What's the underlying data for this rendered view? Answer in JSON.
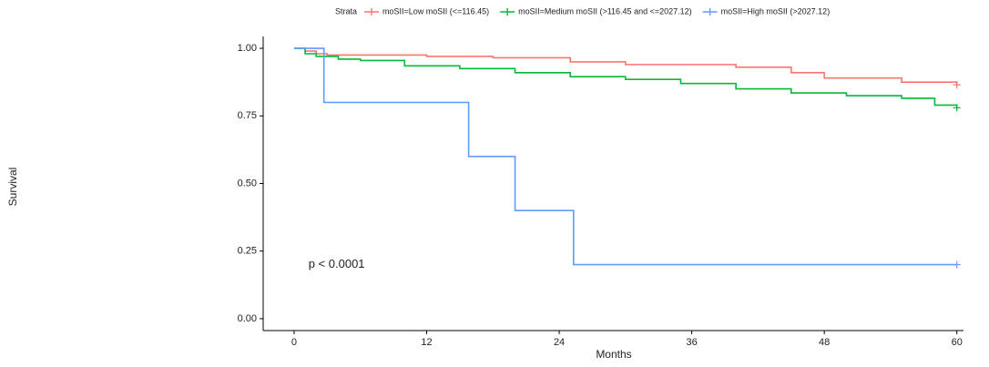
{
  "chart_data": {
    "type": "line",
    "step": true,
    "legend_title": "Strata",
    "legend": "top",
    "annotation": "p < 0.0001",
    "annotation_at": [
      1.3,
      0.2
    ],
    "xlabel": "Months",
    "ylabel": "Survival",
    "xlim": [
      -2.8,
      60.6
    ],
    "ylim": [
      -0.044,
      1.044
    ],
    "xticks": [
      0,
      12,
      24,
      36,
      48,
      60
    ],
    "yticks": [
      {
        "value": 0,
        "label": "0.00"
      },
      {
        "value": 0.25,
        "label": "0.25"
      },
      {
        "value": 0.5,
        "label": "0.50"
      },
      {
        "value": 0.75,
        "label": "0.75"
      },
      {
        "value": 1,
        "label": "1.00"
      }
    ],
    "grid": false,
    "series": [
      {
        "name": "moSII=Low moSII (<=116.45)",
        "color": "#F8766D",
        "x": [
          0,
          1,
          2,
          3,
          8,
          12,
          18,
          25,
          30,
          40,
          45,
          48,
          55,
          60
        ],
        "values": [
          1,
          0.99,
          0.98,
          0.975,
          0.975,
          0.97,
          0.965,
          0.95,
          0.94,
          0.93,
          0.91,
          0.89,
          0.875,
          0.865
        ]
      },
      {
        "name": "moSII=Medium moSII (>116.45 and <=2027.12)",
        "color": "#00BA38",
        "x": [
          0,
          1,
          2,
          4,
          6,
          10,
          15,
          20,
          25,
          30,
          35,
          40,
          45,
          50,
          55,
          58,
          60
        ],
        "values": [
          1,
          0.98,
          0.97,
          0.96,
          0.955,
          0.935,
          0.925,
          0.91,
          0.895,
          0.885,
          0.87,
          0.85,
          0.835,
          0.825,
          0.815,
          0.79,
          0.78
        ]
      },
      {
        "name": "moSII=High moSII (>2027.12)",
        "color": "#619CFF",
        "x": [
          0,
          2.7,
          15.8,
          20,
          25.3,
          60
        ],
        "values": [
          1,
          0.8,
          0.6,
          0.4,
          0.2,
          0.2
        ]
      }
    ]
  }
}
